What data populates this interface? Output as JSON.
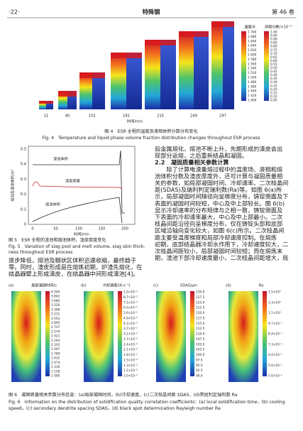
{
  "header": {
    "page": "·22·",
    "journal": "特殊钢",
    "volume": "第 46 卷"
  },
  "figure4": {
    "temp_title": "温度/K",
    "temp_labels": [
      "1 700",
      "1 680",
      "1 660",
      "1 640",
      "1 620",
      "1 600",
      "1 580",
      "1 560",
      "1 540",
      "1 520",
      "1 500",
      "1 480",
      "1 460",
      "1 440",
      "1 420",
      "1 400"
    ],
    "frac_title": "液相分数/×10⁻³",
    "frac_labels": [
      "1.00",
      "0.95",
      "0.90",
      "0.85",
      "0.80",
      "0.75",
      "0.70",
      "0.65",
      "0.60",
      "0.55",
      "0.50",
      "0.45",
      "0.40",
      "0.35",
      "0.30",
      "0.25",
      "0.20",
      "0.15",
      "0.10",
      "0.05"
    ],
    "time_labels": [
      "11",
      "40",
      "101",
      "181",
      "215",
      "249",
      "297"
    ],
    "x_label": "时间/min",
    "caption_cn": "图 4　ESR 全程的温度及液相体积分数分布变化",
    "caption_en": "Fig. 4　Temperature and liquid phase volume fraction distribution changes throughout ESR process"
  },
  "right_text": {
    "lines_before": [
      "后金属熔化，熔池不断上升，先期形成的渣皮会出",
      "现部分返熔，之后重新结晶和凝固。"
    ],
    "heading": "2.2　凝固质量相关参数计算",
    "lines_after": [
      "　　除了计算电渣重熔过程中的温度场、液相和熔",
      "池体积分数及渣皮厚度外，还可计算与凝固质量相",
      "关的参数，如局部凝固时间、冷却速率、二次枝晶间",
      "距(SDAS)及瑞利判定瑞利数(Ra)等。如图 6(a)所",
      "示，局部凝固时间随径向呈梯度分布，铸锭侧面及下",
      "表面的凝固时间较短，中心及中上部较长。图 6(b)",
      "显示冷却速率的分布规律与之相一致，铸锭侧面及",
      "下表面的冷却速率最大，中心及中上部最小。二次",
      "枝晶间距沿径向呈梯度分布，仅在铸锭头部和底部",
      "区域沿轴向变化较大，如图 6(c)所示。二次枝晶间",
      "距主要受温度梯度和局部冷却速度控制。在熔炼",
      "初期，底部结晶器冷却水作用下，冷却速度较大，二",
      "次枝晶间距较小，局部凝固时间较短；而在熔炼末",
      "期，渣池下部冷却速度最小，二次枝晶间距增大，局"
    ]
  },
  "figure5": {
    "y_label": "熔池及渣池体积/m³",
    "y_ticks": [
      "0.5",
      "0.4",
      "0.3",
      "0.2",
      "0.1",
      "0"
    ],
    "x_ticks": [
      "0",
      "50",
      "100",
      "150",
      "200"
    ],
    "x_label": "时间/min",
    "curve_labels": [
      "渣池体积",
      "渣皮厚度",
      "熔池体积"
    ],
    "caption_cn": "图 5　ESR 全程的渣池和熔池体积、渣皮厚度变化",
    "caption_en": [
      "Fig. 5　Variation of slag pool and melt volume, slag skin thick-",
      "ness throughout ESR process"
    ]
  },
  "left_text": [
    "逐步降低，熔池及糊状区体积迅速收缩，最终趋于",
    "零。同时，渣皮形成是在熔炼初期，炉渣先熔化，在",
    "结晶器壁上形成渣皮，在结晶器中间形成渣池[4]。"
  ],
  "figure6": {
    "panels": [
      {
        "tag": "(a)",
        "title": "局部凝固时间/s",
        "labels": [
          "4 000",
          "3 842",
          "3 684",
          "3 526",
          "3 368",
          "3 211",
          "3 053",
          "2 895",
          "2 737",
          "2 579",
          "2 421",
          "2 263",
          "2 105",
          "1 947",
          "1 789",
          "1 632",
          "1 474",
          "1 316",
          "1 158",
          "1 000"
        ]
      },
      {
        "tag": "(b)",
        "title": "冷却速度/(K·s⁻¹)",
        "labels": [
          "1.0×10⁻¹",
          "8.7×10⁻²",
          "7.5×10⁻²",
          "6.5×10⁻²",
          "5.6×10⁻²",
          "4.9×10⁻²",
          "4.2×10⁻²",
          "3.7×10⁻²",
          "3.2×10⁻²",
          "2.7×10⁻²",
          "2.4×10⁻²",
          "2.1×10⁻²",
          "1.8×10⁻²",
          "1.5×10⁻²",
          "1.3×10⁻²",
          "1.2×10⁻²",
          "1.0×10⁻²"
        ]
      },
      {
        "tag": "(c)",
        "title": "SDAS/μm",
        "labels": [
          "130.0",
          "127.5",
          "125.0",
          "122.5",
          "120.0",
          "117.5",
          "115.0",
          "112.5",
          "110.0",
          "107.5",
          "105.0",
          "102.5",
          "100.0",
          "97.5",
          "95.0",
          "92.5",
          "90.0"
        ]
      },
      {
        "tag": "(d)",
        "title": "Ra",
        "labels": [
          "1.5×10⁰",
          "1.3×10⁰",
          "1.1×10⁰",
          "9.7×10⁻¹",
          "8.4×10⁻¹",
          "7.3×10⁻¹",
          "6.4×10⁻¹",
          "5.6×10⁻¹",
          "5.0×10⁻¹"
        ]
      }
    ],
    "caption_cn": "图 6　凝固质量相关参数分布信息：(a)局部凝固时间，(b)冷却速度，(c)二次枝晶间距 SDAS，(d)黑斑判定瑞利数 Ra",
    "caption_en": [
      "Fig. 6　Information on the distribution of solidification quality correlation coefficients：(a) local solidification time，(b) cooling",
      "speed，(c) secondary dendrite spacing SDAS，(d) black spot determination Rayleigh number Ra"
    ]
  }
}
